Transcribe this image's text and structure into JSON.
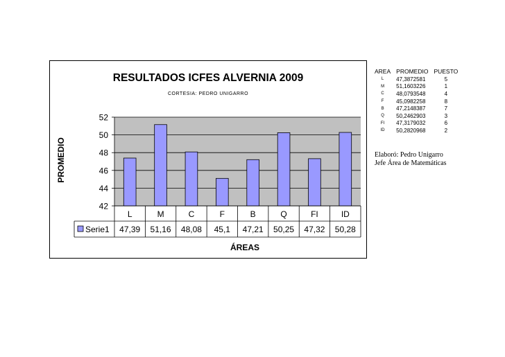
{
  "chart_data": {
    "type": "bar",
    "title": "RESULTADOS ICFES ALVERNIA 2009",
    "subtitle": "CORTESIA:  PEDRO UNIGARRO",
    "xlabel": "ÁREAS",
    "ylabel": "PROMEDIO",
    "categories": [
      "L",
      "M",
      "C",
      "F",
      "B",
      "Q",
      "FI",
      "ID"
    ],
    "series": [
      {
        "name": "Serie1",
        "values": [
          47.39,
          51.16,
          48.08,
          45.1,
          47.21,
          50.25,
          47.32,
          50.28
        ],
        "value_labels": [
          "47,39",
          "51,16",
          "48,08",
          "45,1",
          "47,21",
          "50,25",
          "47,32",
          "50,28"
        ],
        "color": "#9999ff"
      }
    ],
    "ylim": [
      42,
      52
    ],
    "yticks": [
      42,
      44,
      46,
      48,
      50,
      52
    ],
    "grid": true,
    "legend": "data-table-below",
    "plot_background": "#c0c0c0"
  },
  "side_table": {
    "headers": [
      "AREA",
      "PROMEDIO",
      "PUESTO"
    ],
    "rows": [
      {
        "area": "L",
        "promedio": "47,3872581",
        "puesto": "5"
      },
      {
        "area": "M",
        "promedio": "51,1603226",
        "puesto": "1"
      },
      {
        "area": "C",
        "promedio": "48,0793548",
        "puesto": "4"
      },
      {
        "area": "F",
        "promedio": "45,0982258",
        "puesto": "8"
      },
      {
        "area": "B",
        "promedio": "47,2148387",
        "puesto": "7"
      },
      {
        "area": "Q",
        "promedio": "50,2462903",
        "puesto": "3"
      },
      {
        "area": "FI",
        "promedio": "47,3179032",
        "puesto": "6"
      },
      {
        "area": "ID",
        "promedio": "50,2820968",
        "puesto": "2"
      }
    ]
  },
  "credits": {
    "line1": "Elaboró: Pedro Unigarro",
    "line2": "Jefe Área de Matemáticas"
  }
}
